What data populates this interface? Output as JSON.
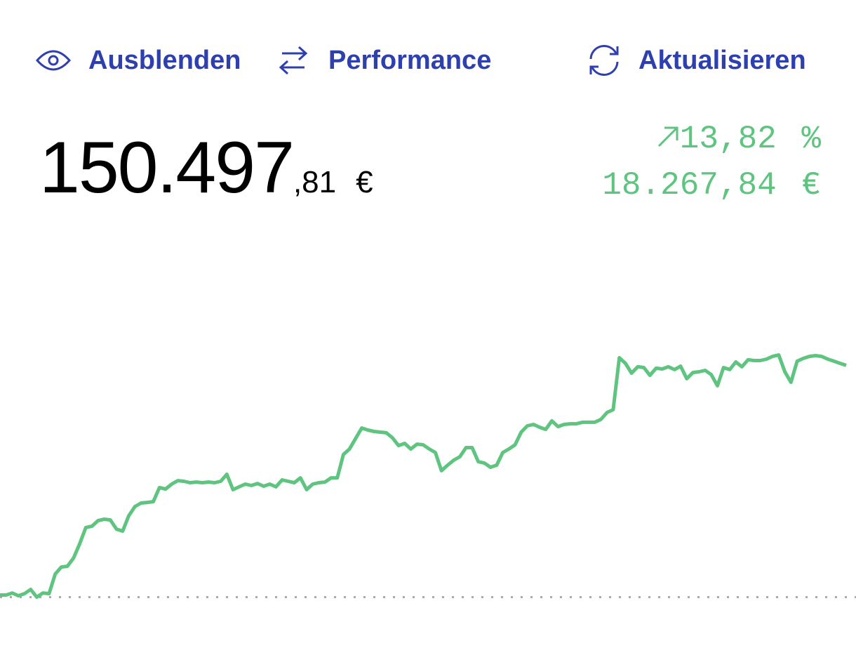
{
  "toolbar": {
    "hide": "Ausblenden",
    "performance": "Performance",
    "refresh": "Aktualisieren"
  },
  "total": {
    "integer": "150.497",
    "decimal": ",81",
    "currency": "€"
  },
  "change": {
    "percent": "13,82",
    "percent_unit": "%",
    "amount": "18.267,84",
    "currency": "€"
  },
  "chart_data": {
    "type": "line",
    "color": "#5ec47f",
    "reference_value": 132229.97,
    "ylim": [
      129500,
      158200
    ],
    "values": [
      132400,
      132400,
      132560,
      132340,
      132510,
      132840,
      132230,
      132560,
      132510,
      134050,
      134600,
      134660,
      135320,
      136430,
      137700,
      137810,
      138250,
      138360,
      138300,
      137580,
      137420,
      138630,
      139350,
      139630,
      139680,
      139740,
      140840,
      140730,
      141120,
      141390,
      141340,
      141230,
      141280,
      141230,
      141280,
      141230,
      141340,
      141890,
      140680,
      140900,
      141120,
      141010,
      141170,
      140950,
      141120,
      140900,
      141450,
      141340,
      141230,
      141610,
      140680,
      141120,
      141230,
      141280,
      141610,
      141610,
      143440,
      143880,
      144710,
      145530,
      145370,
      145260,
      145200,
      145150,
      144760,
      144150,
      144320,
      143880,
      144260,
      144210,
      143880,
      143600,
      142170,
      142610,
      143000,
      143270,
      143990,
      143990,
      142880,
      142770,
      142440,
      142610,
      143600,
      143880,
      144210,
      145200,
      145700,
      145810,
      145590,
      145420,
      146090,
      145640,
      145810,
      145860,
      145860,
      145980,
      145980,
      145980,
      146200,
      146750,
      146970,
      151050,
      150610,
      149840,
      150340,
      150280,
      149670,
      150230,
      150170,
      150340,
      150120,
      150390,
      149400,
      149890,
      149950,
      150060,
      149730,
      148850,
      150280,
      150120,
      150720,
      150340,
      150890,
      150830,
      150830,
      150940,
      151160,
      151270,
      149950,
      149120,
      150780,
      151000,
      151160,
      151220,
      151160,
      150940,
      150780,
      150610,
      150450
    ]
  }
}
